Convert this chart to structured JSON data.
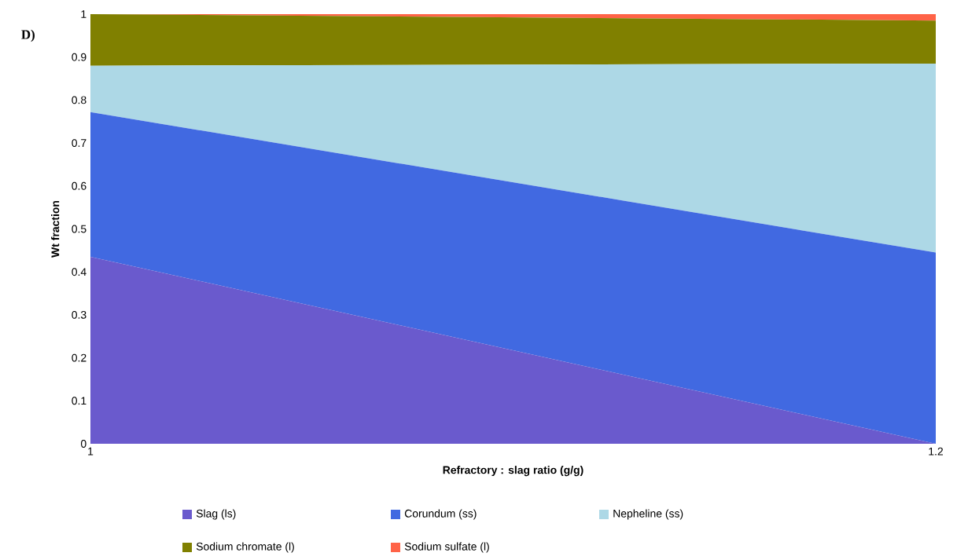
{
  "chart_data": {
    "type": "area",
    "stacked": true,
    "xlabel": "Refractory : slag ratio (g/g)",
    "ylabel": "Wt fraction",
    "annotations": [
      "D)"
    ],
    "x": [
      1,
      1.2
    ],
    "xlim": [
      1,
      1.2
    ],
    "xticks": [
      1,
      1.2
    ],
    "ylim": [
      0,
      1
    ],
    "yticks": [
      0,
      0.1,
      0.2,
      0.3,
      0.4,
      0.5,
      0.6,
      0.7,
      0.8,
      0.9,
      1
    ],
    "series": [
      {
        "name": "Slag (ls)",
        "color": "#6a5acd",
        "values": [
          0.435,
          0
        ]
      },
      {
        "name": "Corundum (ss)",
        "color": "#4169e1",
        "values": [
          0.337,
          0.445
        ]
      },
      {
        "name": "Nepheline (ss)",
        "color": "#add8e6",
        "values": [
          0.108,
          0.44
        ]
      },
      {
        "name": "Sodium chromate (l)",
        "color": "#808000",
        "values": [
          0.12,
          0.1
        ]
      },
      {
        "name": "Sodium sulfate (l)",
        "color": "#ff6347",
        "values": [
          0,
          0.015
        ]
      }
    ],
    "grid": false,
    "legend": "bottom"
  }
}
